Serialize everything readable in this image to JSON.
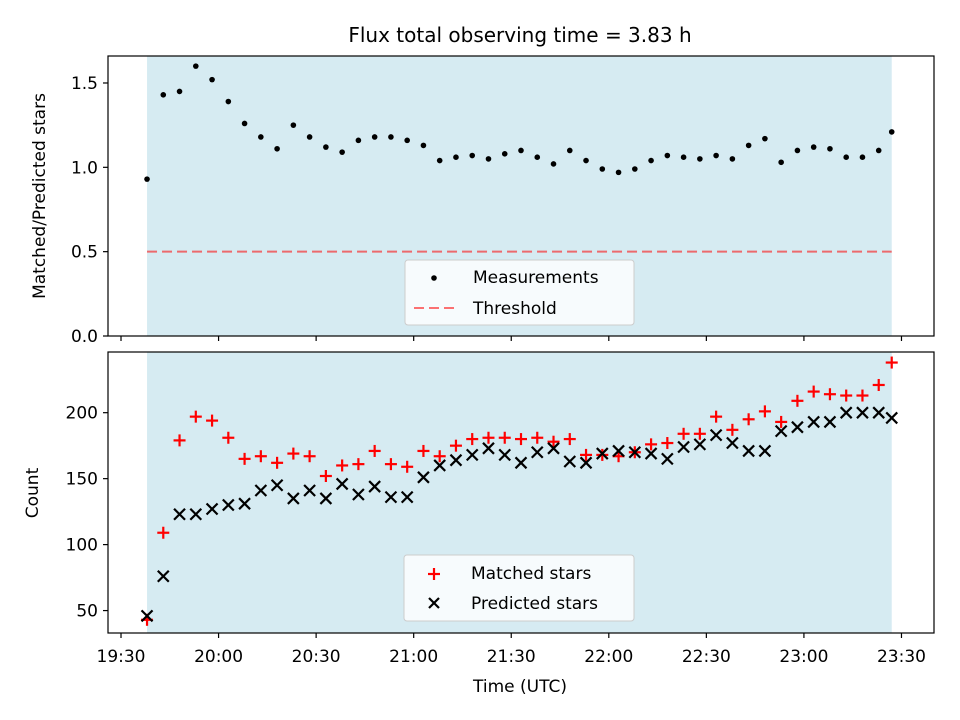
{
  "figure": {
    "title": "Flux total observing time = 3.83 h"
  },
  "colors": {
    "shade": "#add8e6",
    "threshold": "#ff0000",
    "matched": "#ff0000",
    "predicted": "#000000",
    "measurement": "#000000"
  },
  "chart_data": [
    {
      "type": "scatter",
      "ylabel": "Matched/Predicted stars",
      "xlabel": "",
      "ylim": [
        0,
        1.66
      ],
      "yticks": [
        0.0,
        0.5,
        1.0,
        1.5
      ],
      "ytick_labels": [
        "0.0",
        "0.5",
        "1.0",
        "1.5"
      ],
      "x_range_minutes": [
        1166,
        1420
      ],
      "shaded_span_minutes": [
        1178,
        1407
      ],
      "threshold": 0.5,
      "legend": {
        "position": "lower center",
        "entries": [
          "Measurements",
          "Threshold"
        ]
      },
      "series": [
        {
          "name": "Measurements",
          "marker": "dot",
          "x_minutes": [
            1178,
            1183,
            1188,
            1193,
            1198,
            1203,
            1208,
            1213,
            1218,
            1223,
            1228,
            1233,
            1238,
            1243,
            1248,
            1253,
            1258,
            1263,
            1268,
            1273,
            1278,
            1283,
            1288,
            1293,
            1298,
            1303,
            1308,
            1313,
            1318,
            1323,
            1328,
            1333,
            1338,
            1343,
            1348,
            1353,
            1358,
            1363,
            1368,
            1373,
            1378,
            1383,
            1388,
            1393,
            1398,
            1403,
            1407
          ],
          "values": [
            0.93,
            1.43,
            1.45,
            1.6,
            1.52,
            1.39,
            1.26,
            1.18,
            1.11,
            1.25,
            1.18,
            1.12,
            1.09,
            1.16,
            1.18,
            1.18,
            1.16,
            1.13,
            1.04,
            1.06,
            1.07,
            1.05,
            1.08,
            1.1,
            1.06,
            1.02,
            1.1,
            1.04,
            0.99,
            0.97,
            0.99,
            1.04,
            1.07,
            1.06,
            1.05,
            1.07,
            1.05,
            1.13,
            1.17,
            1.03,
            1.1,
            1.12,
            1.11,
            1.06,
            1.06,
            1.1,
            1.21
          ]
        }
      ]
    },
    {
      "type": "scatter",
      "ylabel": "Count",
      "xlabel": "Time (UTC)",
      "ylim": [
        33,
        246
      ],
      "yticks": [
        50,
        100,
        150,
        200
      ],
      "ytick_labels": [
        "50",
        "100",
        "150",
        "200"
      ],
      "x_range_minutes": [
        1166,
        1420
      ],
      "xticks_minutes": [
        1170,
        1200,
        1230,
        1260,
        1290,
        1320,
        1350,
        1380,
        1410
      ],
      "xtick_labels": [
        "19:30",
        "20:00",
        "20:30",
        "21:00",
        "21:30",
        "22:00",
        "22:30",
        "23:00",
        "23:30"
      ],
      "shaded_span_minutes": [
        1178,
        1407
      ],
      "legend": {
        "position": "lower center",
        "entries": [
          "Matched stars",
          "Predicted stars"
        ]
      },
      "x_minutes": [
        1178,
        1183,
        1188,
        1193,
        1198,
        1203,
        1208,
        1213,
        1218,
        1223,
        1228,
        1233,
        1238,
        1243,
        1248,
        1253,
        1258,
        1263,
        1268,
        1273,
        1278,
        1283,
        1288,
        1293,
        1298,
        1303,
        1308,
        1313,
        1318,
        1323,
        1328,
        1333,
        1338,
        1343,
        1348,
        1353,
        1358,
        1363,
        1368,
        1373,
        1378,
        1383,
        1388,
        1393,
        1398,
        1403,
        1407
      ],
      "series": [
        {
          "name": "Matched stars",
          "marker": "plus",
          "values": [
            43,
            109,
            179,
            197,
            194,
            181,
            165,
            167,
            162,
            169,
            167,
            152,
            160,
            161,
            171,
            161,
            159,
            171,
            167,
            175,
            180,
            181,
            181,
            180,
            181,
            178,
            180,
            168,
            168,
            167,
            170,
            176,
            177,
            184,
            184,
            197,
            187,
            195,
            201,
            193,
            209,
            216,
            214,
            213,
            213,
            221,
            238
          ]
        },
        {
          "name": "Predicted stars",
          "marker": "x",
          "values": [
            46,
            76,
            123,
            123,
            127,
            130,
            131,
            141,
            145,
            135,
            141,
            135,
            146,
            138,
            144,
            136,
            136,
            151,
            160,
            164,
            168,
            173,
            168,
            162,
            170,
            173,
            163,
            162,
            169,
            171,
            170,
            169,
            165,
            174,
            176,
            183,
            177,
            171,
            171,
            186,
            189,
            193,
            193,
            200,
            200,
            200,
            196
          ]
        }
      ]
    }
  ]
}
